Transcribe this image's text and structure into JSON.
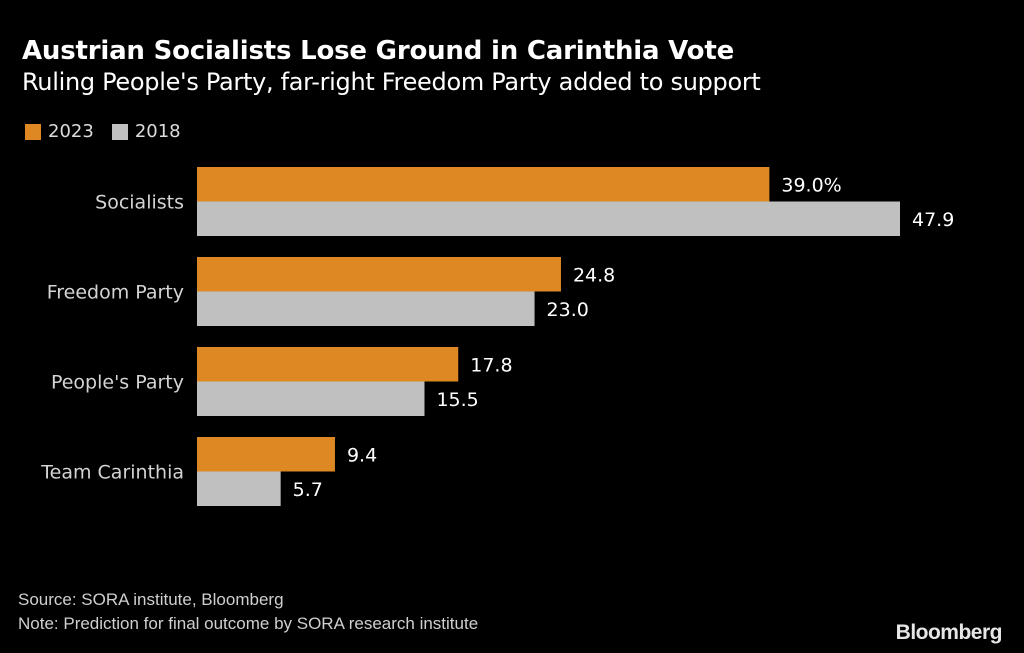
{
  "chart_data": {
    "type": "bar",
    "orientation": "horizontal",
    "title": "Austrian Socialists Lose Ground in Carinthia Vote",
    "subtitle": "Ruling People's Party, far-right Freedom Party added to support",
    "categories": [
      "Socialists",
      "Freedom Party",
      "People's Party",
      "Team Carinthia"
    ],
    "series": [
      {
        "name": "2023",
        "color": "#dd8823",
        "values": [
          39.0,
          24.8,
          17.8,
          9.4
        ],
        "labels": [
          "39.0%",
          "24.8",
          "17.8",
          "9.4"
        ]
      },
      {
        "name": "2018",
        "color": "#c0c0c0",
        "values": [
          47.9,
          23.0,
          15.5,
          5.7
        ],
        "labels": [
          "47.9",
          "23.0",
          "15.5",
          "5.7"
        ]
      }
    ],
    "xlabel": "",
    "ylabel": "",
    "xlim": [
      0,
      50
    ],
    "grid": false,
    "legend_position": "top-left",
    "unit": "%"
  },
  "footer": {
    "source": "Source: SORA institute, Bloomberg",
    "note": "Note: Prediction for final outcome by SORA research institute"
  },
  "branding": {
    "logo": "Bloomberg"
  },
  "colors": {
    "background": "#000000",
    "accent_2023": "#dd8823",
    "accent_2018": "#c0c0c0"
  }
}
